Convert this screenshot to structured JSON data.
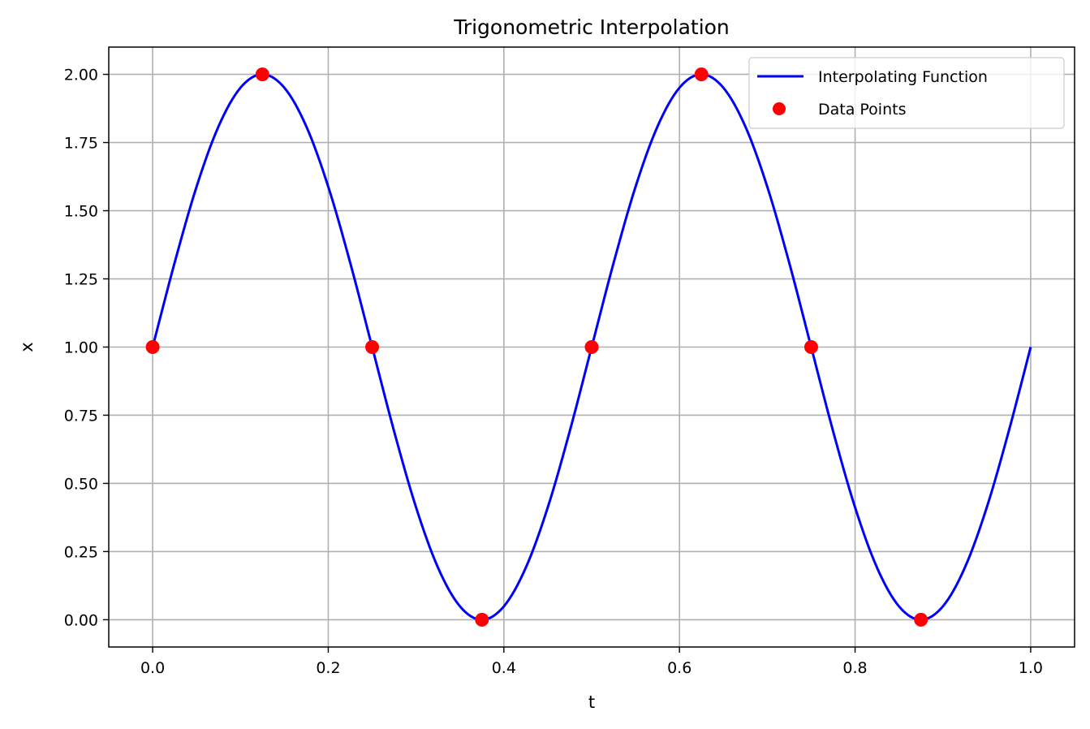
{
  "chart_data": {
    "type": "line",
    "title": "Trigonometric Interpolation",
    "xlabel": "t",
    "ylabel": "x",
    "xlim": [
      -0.05,
      1.05
    ],
    "ylim": [
      -0.1,
      2.1
    ],
    "xticks": [
      0.0,
      0.2,
      0.4,
      0.6,
      0.8,
      1.0
    ],
    "xtick_labels": [
      "0.0",
      "0.2",
      "0.4",
      "0.6",
      "0.8",
      "1.0"
    ],
    "yticks": [
      0.0,
      0.25,
      0.5,
      0.75,
      1.0,
      1.25,
      1.5,
      1.75,
      2.0
    ],
    "ytick_labels": [
      "0.00",
      "0.25",
      "0.50",
      "0.75",
      "1.00",
      "1.25",
      "1.50",
      "1.75",
      "2.00"
    ],
    "grid": true,
    "legend_position": "top-right",
    "series": [
      {
        "name": "Interpolating Function",
        "kind": "line",
        "color": "#0000ff",
        "x": [
          0.0,
          0.025,
          0.05,
          0.075,
          0.1,
          0.125,
          0.15,
          0.175,
          0.2,
          0.225,
          0.25,
          0.275,
          0.3,
          0.325,
          0.35,
          0.375,
          0.4,
          0.425,
          0.45,
          0.475,
          0.5,
          0.525,
          0.55,
          0.575,
          0.6,
          0.625,
          0.65,
          0.675,
          0.7,
          0.725,
          0.75,
          0.775,
          0.8,
          0.825,
          0.85,
          0.875,
          0.9,
          0.925,
          0.95,
          0.975,
          1.0
        ],
        "y": [
          1.0,
          1.309,
          1.588,
          1.809,
          1.951,
          2.0,
          1.951,
          1.809,
          1.588,
          1.309,
          1.0,
          0.691,
          0.412,
          0.191,
          0.049,
          0.0,
          0.049,
          0.191,
          0.412,
          0.691,
          1.0,
          1.309,
          1.588,
          1.809,
          1.951,
          2.0,
          1.951,
          1.809,
          1.588,
          1.309,
          1.0,
          0.691,
          0.412,
          0.191,
          0.049,
          0.0,
          0.049,
          0.191,
          0.412,
          0.691,
          1.0
        ]
      },
      {
        "name": "Data Points",
        "kind": "scatter",
        "color": "#ff0000",
        "x": [
          0.0,
          0.125,
          0.25,
          0.375,
          0.5,
          0.625,
          0.75,
          0.875
        ],
        "y": [
          1.0,
          2.0,
          1.0,
          0.0,
          1.0,
          2.0,
          1.0,
          0.0
        ]
      }
    ]
  }
}
